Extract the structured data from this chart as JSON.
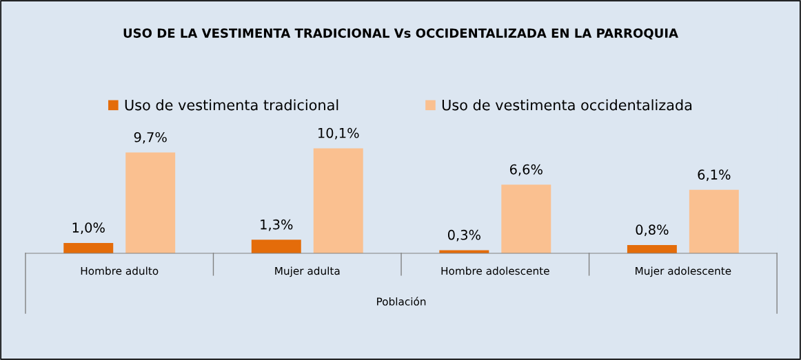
{
  "chart_data": {
    "type": "bar",
    "title": "USO DE LA VESTIMENTA TRADICIONAL Vs OCCIDENTALIZADA EN LA PARROQUIA",
    "xlabel": "Población",
    "categories": [
      "Hombre adulto",
      "Mujer adulta",
      "Hombre adolescente",
      "Mujer adolescente"
    ],
    "series": [
      {
        "name": "Uso de vestimenta tradicional",
        "color": "#e46c0a",
        "values": [
          1.0,
          1.3,
          0.3,
          0.8
        ],
        "value_labels": [
          "1,0%",
          "1,3%",
          "0,3%",
          "0,8%"
        ]
      },
      {
        "name": "Uso de vestimenta occidentalizada",
        "color": "#fac090",
        "values": [
          9.7,
          10.1,
          6.6,
          6.1
        ],
        "value_labels": [
          "9,7%",
          "10,1%",
          "6,6%",
          "6,1%"
        ]
      }
    ],
    "tick_labels": "x",
    "legend": "top",
    "grid": false
  }
}
